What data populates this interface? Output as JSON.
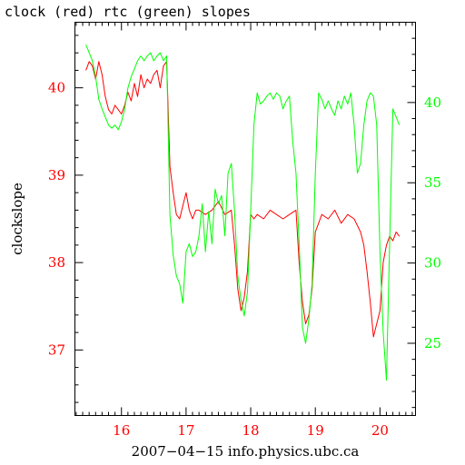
{
  "chart_data": {
    "type": "line",
    "title": "clock (red) rtc (green) slopes",
    "xlabel": "2007−04−15 info.physics.ubc.ca",
    "ylabel": "clockslope",
    "xlim": [
      15.28,
      20.55
    ],
    "ylim_left": [
      36.25,
      40.75
    ],
    "ylim_right": [
      20.5,
      45.0
    ],
    "x_ticks": [
      16,
      17,
      18,
      19,
      20
    ],
    "x_tick_labels": [
      "16",
      "17",
      "18",
      "19",
      "20"
    ],
    "y_ticks_left": [
      37,
      38,
      39,
      40
    ],
    "y_tick_labels_left": [
      "37",
      "38",
      "39",
      "40"
    ],
    "y_ticks_right": [
      25,
      30,
      35,
      40
    ],
    "y_tick_labels_right": [
      "25",
      "30",
      "35",
      "40"
    ],
    "grid": false,
    "colors": {
      "clock": "#ff0000",
      "rtc": "#00ff00",
      "axes": "#000000"
    },
    "series": [
      {
        "axis": "left",
        "color": "#ff0000",
        "x": [
          15.45,
          15.5,
          15.55,
          15.6,
          15.65,
          15.7,
          15.75,
          15.8,
          15.85,
          15.9,
          15.95,
          16.0,
          16.05,
          16.1,
          16.15,
          16.2,
          16.25,
          16.3,
          16.35,
          16.4,
          16.45,
          16.5,
          16.55,
          16.6,
          16.65,
          16.7,
          16.75,
          16.8,
          16.85,
          16.9,
          16.95,
          17.0,
          17.05,
          17.1,
          17.15,
          17.2,
          17.3,
          17.4,
          17.5,
          17.6,
          17.7,
          17.75,
          17.8,
          17.85,
          17.9,
          17.95,
          18.0,
          18.05,
          18.1,
          18.2,
          18.3,
          18.4,
          18.5,
          18.6,
          18.7,
          18.75,
          18.8,
          18.85,
          18.9,
          18.95,
          19.0,
          19.05,
          19.1,
          19.2,
          19.3,
          19.4,
          19.5,
          19.6,
          19.7,
          19.75,
          19.8,
          19.85,
          19.9,
          19.95,
          20.0,
          20.05,
          20.1,
          20.15,
          20.2,
          20.25,
          20.3
        ],
        "y": [
          40.2,
          40.3,
          40.25,
          40.1,
          40.3,
          40.15,
          39.9,
          39.75,
          39.7,
          39.8,
          39.75,
          39.7,
          39.8,
          39.95,
          39.85,
          40.05,
          39.9,
          40.15,
          40.0,
          40.1,
          40.05,
          40.15,
          40.2,
          40.0,
          40.25,
          40.3,
          39.1,
          38.8,
          38.55,
          38.5,
          38.65,
          38.8,
          38.6,
          38.5,
          38.6,
          38.6,
          38.55,
          38.6,
          38.7,
          38.55,
          38.6,
          38.2,
          37.7,
          37.45,
          37.6,
          37.9,
          38.55,
          38.5,
          38.55,
          38.5,
          38.6,
          38.55,
          38.5,
          38.55,
          38.6,
          38.0,
          37.55,
          37.3,
          37.4,
          37.7,
          38.35,
          38.45,
          38.55,
          38.5,
          38.6,
          38.45,
          38.55,
          38.5,
          38.35,
          38.2,
          37.9,
          37.55,
          37.15,
          37.3,
          37.45,
          38.0,
          38.2,
          38.3,
          38.25,
          38.35,
          38.3
        ]
      },
      {
        "axis": "right",
        "color": "#00ff00",
        "x": [
          15.45,
          15.5,
          15.55,
          15.6,
          15.65,
          15.7,
          15.75,
          15.8,
          15.85,
          15.9,
          15.95,
          16.0,
          16.05,
          16.1,
          16.15,
          16.2,
          16.25,
          16.3,
          16.35,
          16.4,
          16.45,
          16.5,
          16.55,
          16.6,
          16.65,
          16.7,
          16.75,
          16.8,
          16.85,
          16.9,
          16.95,
          17.0,
          17.05,
          17.1,
          17.15,
          17.2,
          17.25,
          17.3,
          17.35,
          17.4,
          17.45,
          17.5,
          17.55,
          17.6,
          17.65,
          17.7,
          17.75,
          17.8,
          17.85,
          17.9,
          17.95,
          18.0,
          18.05,
          18.1,
          18.15,
          18.2,
          18.25,
          18.3,
          18.35,
          18.4,
          18.45,
          18.5,
          18.55,
          18.6,
          18.65,
          18.7,
          18.75,
          18.8,
          18.85,
          18.9,
          18.95,
          19.0,
          19.05,
          19.1,
          19.15,
          19.2,
          19.25,
          19.3,
          19.35,
          19.4,
          19.45,
          19.5,
          19.55,
          19.6,
          19.65,
          19.7,
          19.75,
          19.8,
          19.85,
          19.9,
          19.95,
          20.0,
          20.05,
          20.1,
          20.15,
          20.2,
          20.25,
          20.3
        ],
        "y": [
          43.6,
          43.1,
          42.6,
          41.6,
          40.2,
          39.6,
          39.1,
          38.6,
          38.4,
          38.6,
          38.3,
          38.8,
          39.6,
          40.9,
          41.6,
          42.1,
          42.6,
          42.9,
          42.6,
          42.9,
          43.1,
          42.6,
          42.9,
          43.1,
          42.6,
          42.9,
          33.0,
          30.5,
          29.2,
          28.7,
          27.5,
          30.7,
          31.2,
          30.4,
          30.7,
          31.7,
          33.7,
          30.7,
          33.2,
          31.2,
          34.6,
          33.7,
          34.2,
          31.7,
          35.6,
          36.2,
          33.2,
          29.2,
          27.7,
          26.7,
          28.2,
          33.2,
          38.6,
          40.6,
          39.9,
          40.1,
          40.4,
          40.6,
          40.2,
          40.6,
          40.4,
          39.6,
          40.1,
          40.4,
          37.6,
          35.6,
          31.2,
          26.0,
          25.0,
          26.5,
          28.7,
          35.6,
          40.6,
          40.2,
          39.6,
          40.1,
          39.6,
          39.2,
          40.1,
          39.6,
          40.4,
          39.9,
          40.6,
          38.6,
          35.6,
          36.2,
          38.6,
          40.1,
          40.6,
          40.4,
          38.6,
          30.7,
          25.7,
          22.7,
          31.2,
          39.6,
          39.1,
          38.6
        ]
      }
    ]
  }
}
